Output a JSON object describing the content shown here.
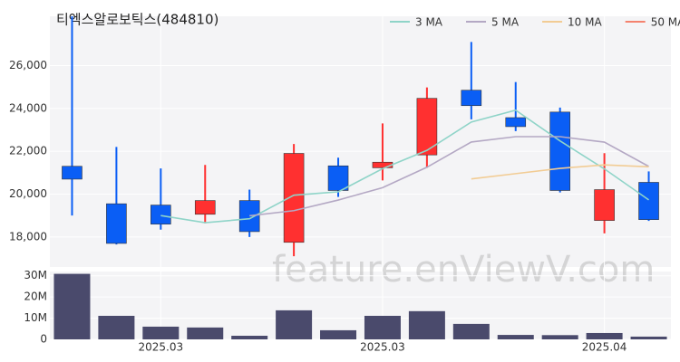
{
  "chart_data": {
    "type": "candlestick",
    "title": "티엑스알로보틱스(484810)",
    "watermark": "feature.enViewV.com",
    "categories": [
      null,
      null,
      "2025.03",
      null,
      null,
      null,
      null,
      "2025.03",
      null,
      null,
      null,
      null,
      "2025.04",
      null
    ],
    "open": [
      21300,
      19550,
      19490,
      19060,
      19700,
      17750,
      21320,
      21230,
      21830,
      24850,
      23570,
      23830,
      18770,
      20550
    ],
    "high": [
      28300,
      22200,
      21200,
      21360,
      20210,
      22340,
      21700,
      23300,
      24980,
      27100,
      25230,
      24040,
      21910,
      21060
    ],
    "low": [
      19000,
      17650,
      18340,
      18640,
      18000,
      17100,
      19870,
      20640,
      21230,
      23490,
      22940,
      20080,
      18170,
      18750
    ],
    "close": [
      20700,
      17700,
      18600,
      19700,
      18250,
      21900,
      20170,
      21490,
      24470,
      24130,
      23150,
      20170,
      20210,
      18810
    ],
    "up_color": "#ff3030",
    "down_color": "#0a5ef5",
    "series": [
      {
        "name": "3 MA",
        "color": "#8fd4c8",
        "values": [
          null,
          null,
          19000,
          18667,
          18850,
          19950,
          20107,
          21187,
          22043,
          23363,
          23917,
          22483,
          21177,
          19730
        ]
      },
      {
        "name": "5 MA",
        "color": "#b4a8c4",
        "values": [
          null,
          null,
          null,
          null,
          18990,
          19230,
          19724,
          20302,
          21256,
          22432,
          22682,
          22682,
          22426,
          21294
        ]
      },
      {
        "name": "10 MA",
        "color": "#f2cc94",
        "values": [
          null,
          null,
          null,
          null,
          null,
          null,
          null,
          null,
          null,
          20711,
          20956,
          21203,
          21364,
          21275
        ]
      },
      {
        "name": "50 MA",
        "color": "#f4826e",
        "values": [
          null,
          null,
          null,
          null,
          null,
          null,
          null,
          null,
          null,
          null,
          null,
          null,
          null,
          null
        ]
      }
    ],
    "ylim": [
      16600,
      28300
    ],
    "yticks": [
      {
        "value": 18000,
        "label": "18,000"
      },
      {
        "value": 20000,
        "label": "20,000"
      },
      {
        "value": 22000,
        "label": "22,000"
      },
      {
        "value": 24000,
        "label": "24,000"
      },
      {
        "value": 26000,
        "label": "26,000"
      }
    ],
    "volume": [
      30900000,
      11100000,
      6000000,
      5600000,
      1700000,
      13700000,
      4300000,
      11100000,
      13300000,
      7300000,
      2100000,
      2000000,
      3000000,
      1300000
    ],
    "volume_color": "#4a4a6c",
    "volume_ylim": [
      0,
      32000000
    ],
    "volume_yticks": [
      0,
      {
        "value": 10000000,
        "label": "10M"
      },
      {
        "value": 20000000,
        "label": "20M"
      },
      {
        "value": 30000000,
        "label": "30M"
      }
    ],
    "grid": true,
    "legend": "top-right"
  }
}
